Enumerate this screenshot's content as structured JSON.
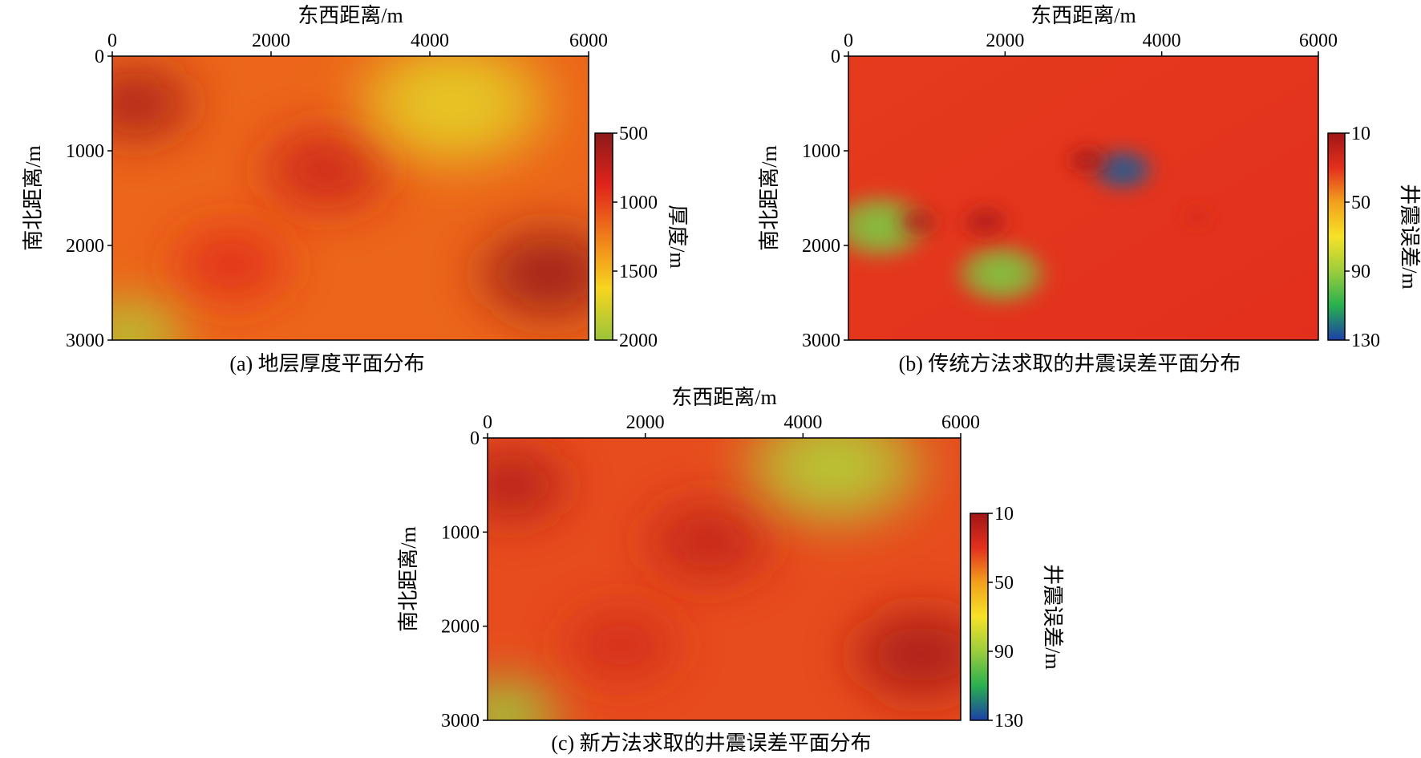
{
  "colors": {
    "thickness_map": [
      "#8c1a1a",
      "#e0241b",
      "#f07d1a",
      "#f7d51f",
      "#9bc43a"
    ],
    "error_map": [
      "#a01616",
      "#e3301d",
      "#f2a01c",
      "#f6e228",
      "#9ccd3c",
      "#27b04f",
      "#1d3fa8"
    ]
  },
  "chart_data": [
    {
      "id": "a",
      "type": "heatmap",
      "title": "",
      "caption": "(a) 地层厚度平面分布",
      "xlabel": "东西距离/m",
      "ylabel": "南北距离/m",
      "xlim": [
        0,
        6000
      ],
      "ylim": [
        0,
        3000
      ],
      "y_inverted": true,
      "xticks": [
        "0",
        "2000",
        "4000",
        "6000"
      ],
      "yticks": [
        "0",
        "1000",
        "2000",
        "3000"
      ],
      "colorbar": {
        "label": "厚度/m",
        "range": [
          500,
          2000
        ],
        "ticks": [
          "500",
          "1000",
          "1500",
          "2000"
        ],
        "colormap": "thickness_map"
      },
      "features": [
        {
          "x": 300,
          "y": 500,
          "value": 620,
          "radius": 900
        },
        {
          "x": 2700,
          "y": 1200,
          "value": 780,
          "radius": 1000
        },
        {
          "x": 5500,
          "y": 2300,
          "value": 560,
          "radius": 1100
        },
        {
          "x": 1500,
          "y": 2200,
          "value": 900,
          "radius": 900
        },
        {
          "x": 4300,
          "y": 500,
          "value": 1700,
          "radius": 1500
        },
        {
          "x": 200,
          "y": 2950,
          "value": 1900,
          "radius": 900
        }
      ]
    },
    {
      "id": "b",
      "type": "heatmap",
      "title": "",
      "caption": "(b) 传统方法求取的井震误差平面分布",
      "xlabel": "东西距离/m",
      "ylabel": "南北距离/m",
      "xlim": [
        0,
        6000
      ],
      "ylim": [
        0,
        3000
      ],
      "y_inverted": true,
      "xticks": [
        "0",
        "2000",
        "4000",
        "6000"
      ],
      "yticks": [
        "0",
        "1000",
        "2000",
        "3000"
      ],
      "colorbar": {
        "label": "井震误差/m",
        "range": [
          10,
          130
        ],
        "ticks": [
          "10",
          "50",
          "90",
          "130"
        ],
        "colormap": "error_map"
      },
      "features": [
        {
          "x": 3500,
          "y": 1200,
          "value": 125,
          "radius": 450
        },
        {
          "x": 400,
          "y": 1800,
          "value": 95,
          "radius": 700
        },
        {
          "x": 1950,
          "y": 2300,
          "value": 95,
          "radius": 650
        },
        {
          "x": 3050,
          "y": 1100,
          "value": 12,
          "radius": 300
        },
        {
          "x": 1750,
          "y": 1750,
          "value": 15,
          "radius": 350
        },
        {
          "x": 900,
          "y": 1750,
          "value": 15,
          "radius": 300
        },
        {
          "x": 4450,
          "y": 1700,
          "value": 25,
          "radius": 200
        }
      ]
    },
    {
      "id": "c",
      "type": "heatmap",
      "title": "",
      "caption": "(c) 新方法求取的井震误差平面分布",
      "xlabel": "东西距离/m",
      "ylabel": "南北距离/m",
      "xlim": [
        0,
        6000
      ],
      "ylim": [
        0,
        3000
      ],
      "y_inverted": true,
      "xticks": [
        "0",
        "2000",
        "4000",
        "6000"
      ],
      "yticks": [
        "0",
        "1000",
        "2000",
        "3000"
      ],
      "colorbar": {
        "label": "井震误差/m",
        "range": [
          10,
          130
        ],
        "ticks": [
          "10",
          "50",
          "90",
          "130"
        ],
        "colormap": "error_map"
      },
      "features": [
        {
          "x": 300,
          "y": 500,
          "value": 15,
          "radius": 900
        },
        {
          "x": 2800,
          "y": 1100,
          "value": 20,
          "radius": 1000
        },
        {
          "x": 5500,
          "y": 2300,
          "value": 12,
          "radius": 1100
        },
        {
          "x": 1700,
          "y": 2200,
          "value": 25,
          "radius": 900
        },
        {
          "x": 4400,
          "y": 300,
          "value": 85,
          "radius": 1400
        },
        {
          "x": 200,
          "y": 2950,
          "value": 90,
          "radius": 900
        }
      ]
    }
  ]
}
